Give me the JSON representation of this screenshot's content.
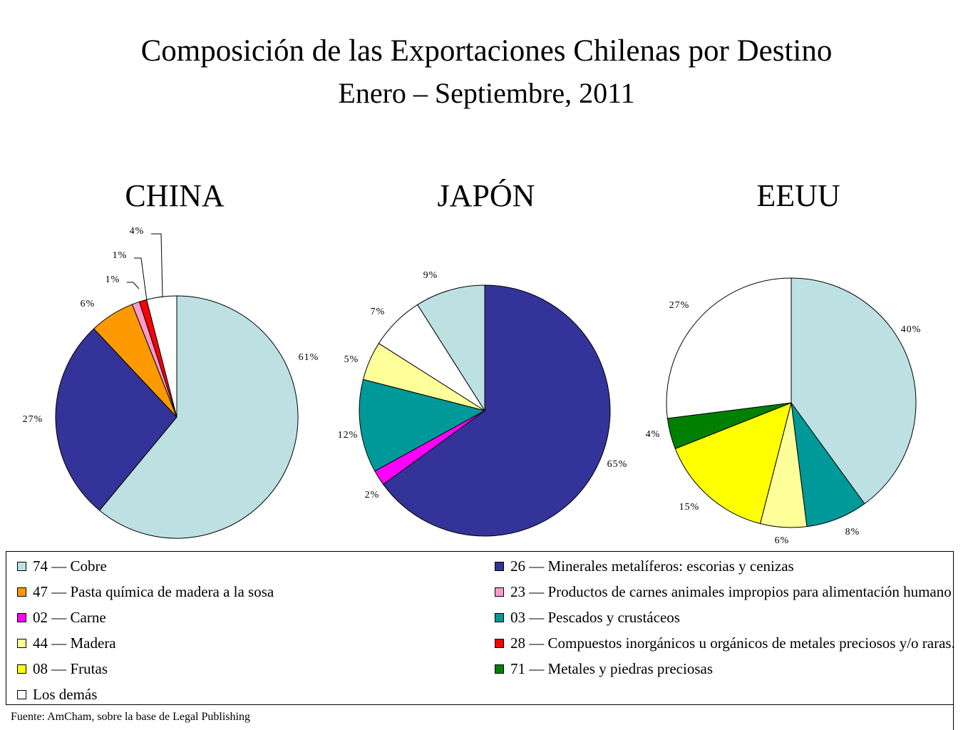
{
  "title": "Composición de las Exportaciones Chilenas por Destino",
  "subtitle": "Enero – Septiembre, 2011",
  "source": "Fuente: AmCham, sobre la base de Legal Publishing",
  "legend": [
    {
      "key": "cobre",
      "label": "74 — Cobre",
      "color": "#bde0e3"
    },
    {
      "key": "minerales",
      "label": "26 — Minerales metalíferos: escorias y cenizas",
      "color": "#333399"
    },
    {
      "key": "pasta",
      "label": "47 — Pasta química de madera a la sosa",
      "color": "#ff9900"
    },
    {
      "key": "productos",
      "label": "23 — Productos de carnes animales impropios para alimentación humano",
      "color": "#ff99cc"
    },
    {
      "key": "carne",
      "label": "02 — Carne",
      "color": "#ff00ff"
    },
    {
      "key": "pescados",
      "label": "03 — Pescados y crustáceos",
      "color": "#009999"
    },
    {
      "key": "madera",
      "label": "44 — Madera",
      "color": "#ffff99"
    },
    {
      "key": "compuestos",
      "label": "28 — Compuestos inorgánicos u orgánicos de metales preciosos y/o raras.",
      "color": "#ff0000"
    },
    {
      "key": "frutas",
      "label": "08 — Frutas",
      "color": "#ffff00"
    },
    {
      "key": "metales",
      "label": "71 — Metales y piedras preciosas",
      "color": "#008000"
    },
    {
      "key": "demas",
      "label": "Los demás",
      "color": "#ffffff"
    }
  ],
  "chart_data": [
    {
      "type": "pie",
      "title": "CHINA",
      "slices": [
        {
          "category": "74 — Cobre",
          "key": "cobre",
          "value": 61,
          "label": "61%"
        },
        {
          "category": "26 — Minerales metalíferos: escorias y cenizas",
          "key": "minerales",
          "value": 27,
          "label": "27%"
        },
        {
          "category": "47 — Pasta química de madera a la sosa",
          "key": "pasta",
          "value": 6,
          "label": "6%"
        },
        {
          "category": "23 — Productos de carnes animales impropios para alimentación humano",
          "key": "productos",
          "value": 1,
          "label": "1%"
        },
        {
          "category": "28 — Compuestos inorgánicos u orgánicos de metales preciosos y/o raras.",
          "key": "compuestos",
          "value": 1,
          "label": "1%"
        },
        {
          "category": "Los demás",
          "key": "demas",
          "value": 4,
          "label": "4%"
        }
      ]
    },
    {
      "type": "pie",
      "title": "JAPÓN",
      "slices": [
        {
          "category": "26 — Minerales metalíferos: escorias y cenizas",
          "key": "minerales",
          "value": 65,
          "label": "65%"
        },
        {
          "category": "02 — Carne",
          "key": "carne",
          "value": 2,
          "label": "2%"
        },
        {
          "category": "03 — Pescados y crustáceos",
          "key": "pescados",
          "value": 12,
          "label": "12%"
        },
        {
          "category": "44 — Madera",
          "key": "madera",
          "value": 5,
          "label": "5%"
        },
        {
          "category": "Los demás",
          "key": "demas",
          "value": 7,
          "label": "7%"
        },
        {
          "category": "74 — Cobre",
          "key": "cobre",
          "value": 9,
          "label": "9%"
        }
      ]
    },
    {
      "type": "pie",
      "title": "EEUU",
      "slices": [
        {
          "category": "74 — Cobre",
          "key": "cobre",
          "value": 40,
          "label": "40%"
        },
        {
          "category": "03 — Pescados y crustáceos",
          "key": "pescados",
          "value": 8,
          "label": "8%"
        },
        {
          "category": "44 — Madera",
          "key": "madera",
          "value": 6,
          "label": "6%"
        },
        {
          "category": "08 — Frutas",
          "key": "frutas",
          "value": 15,
          "label": "15%"
        },
        {
          "category": "71 — Metales y piedras preciosas",
          "key": "metales",
          "value": 4,
          "label": "4%"
        },
        {
          "category": "Los demás",
          "key": "demas",
          "value": 27,
          "label": "27%"
        }
      ]
    }
  ]
}
